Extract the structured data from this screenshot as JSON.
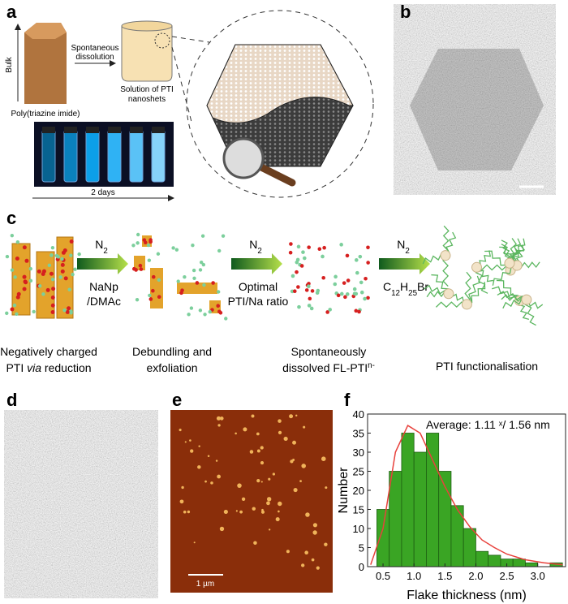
{
  "panels": {
    "a": {
      "label": "a",
      "bulk": "Bulk",
      "arrow_text": [
        "Spontaneous",
        "dissolution"
      ],
      "bulk_caption": "Poly(triazine imide)",
      "solution_caption": [
        "Solution of PTI",
        "nanoshets"
      ],
      "time": "2 days"
    },
    "b": {
      "label": "b"
    },
    "c": {
      "label": "c",
      "steps": [
        {
          "gas": [
            {
              "text": "N"
            },
            {
              "text": "2",
              "style": "sub"
            }
          ],
          "reagent": [
            [
              {
                "text": "NaNp"
              }
            ],
            [
              {
                "text": "/DMAc"
              }
            ]
          ]
        },
        {
          "gas": [
            {
              "text": "N"
            },
            {
              "text": "2",
              "style": "sub"
            }
          ],
          "reagent": [
            [
              {
                "text": "Optimal"
              }
            ],
            [
              {
                "text": "PTI/Na ratio"
              }
            ]
          ]
        },
        {
          "gas": [
            {
              "text": "N"
            },
            {
              "text": "2",
              "style": "sub"
            }
          ],
          "reagent": [
            [
              {
                "text": "C"
              },
              {
                "text": "12",
                "style": "sub"
              },
              {
                "text": "H"
              },
              {
                "text": "25",
                "style": "sub"
              },
              {
                "text": "Br"
              }
            ]
          ]
        }
      ],
      "captions": [
        [
          [
            {
              "text": "Negatively charged"
            }
          ],
          [
            {
              "text": "PTI "
            },
            {
              "text": "via",
              "style": "italic"
            },
            {
              "text": " reduction"
            }
          ]
        ],
        [
          [
            {
              "text": "Debundling and"
            }
          ],
          [
            {
              "text": "exfoliation"
            }
          ]
        ],
        [
          [
            {
              "text": "Spontaneously"
            }
          ],
          [
            {
              "text": "dissolved FL-PTI"
            },
            {
              "text": "n-",
              "style": "sup"
            }
          ]
        ],
        [
          [
            {
              "text": "PTI functionalisation"
            }
          ]
        ]
      ]
    },
    "d": {
      "label": "d"
    },
    "e": {
      "label": "e",
      "scale_bar": "1 µm"
    },
    "f": {
      "label": "f"
    }
  },
  "chart_data": {
    "type": "histogram",
    "bins": [
      0.4,
      0.6,
      0.8,
      1.0,
      1.2,
      1.4,
      1.6,
      1.8,
      2.0,
      2.2,
      2.4,
      2.6,
      2.8,
      3.0,
      3.2,
      3.4
    ],
    "values": [
      15,
      25,
      35,
      30,
      35,
      25,
      16,
      10,
      4,
      3,
      2,
      2,
      1,
      0,
      1
    ],
    "color": "#3aa524",
    "fit": {
      "x": [
        0.3,
        0.5,
        0.7,
        0.9,
        1.1,
        1.3,
        1.5,
        1.7,
        1.9,
        2.1,
        2.3,
        2.5,
        2.8,
        3.1,
        3.4
      ],
      "values": [
        0.5,
        10,
        30,
        37,
        35,
        28,
        21,
        15,
        10.5,
        7,
        5,
        3.3,
        1.8,
        1,
        0.5
      ],
      "color": "#e8413c"
    },
    "xlim": [
      0.25,
      3.45
    ],
    "ylim": [
      0,
      40
    ],
    "xticks": [
      0.5,
      {
        "value": 1,
        "label": "1.0"
      },
      1.5,
      {
        "value": 2,
        "label": "2.0"
      },
      2.5,
      {
        "value": 3,
        "label": "3.0"
      }
    ],
    "yticks": [
      0,
      5,
      10,
      15,
      20,
      25,
      30,
      35,
      40
    ],
    "xlabel": "Flake thickness (nm)",
    "ylabel": "Number",
    "annotation": "Average: 1.11 ˣ/ 1.56 nm"
  }
}
